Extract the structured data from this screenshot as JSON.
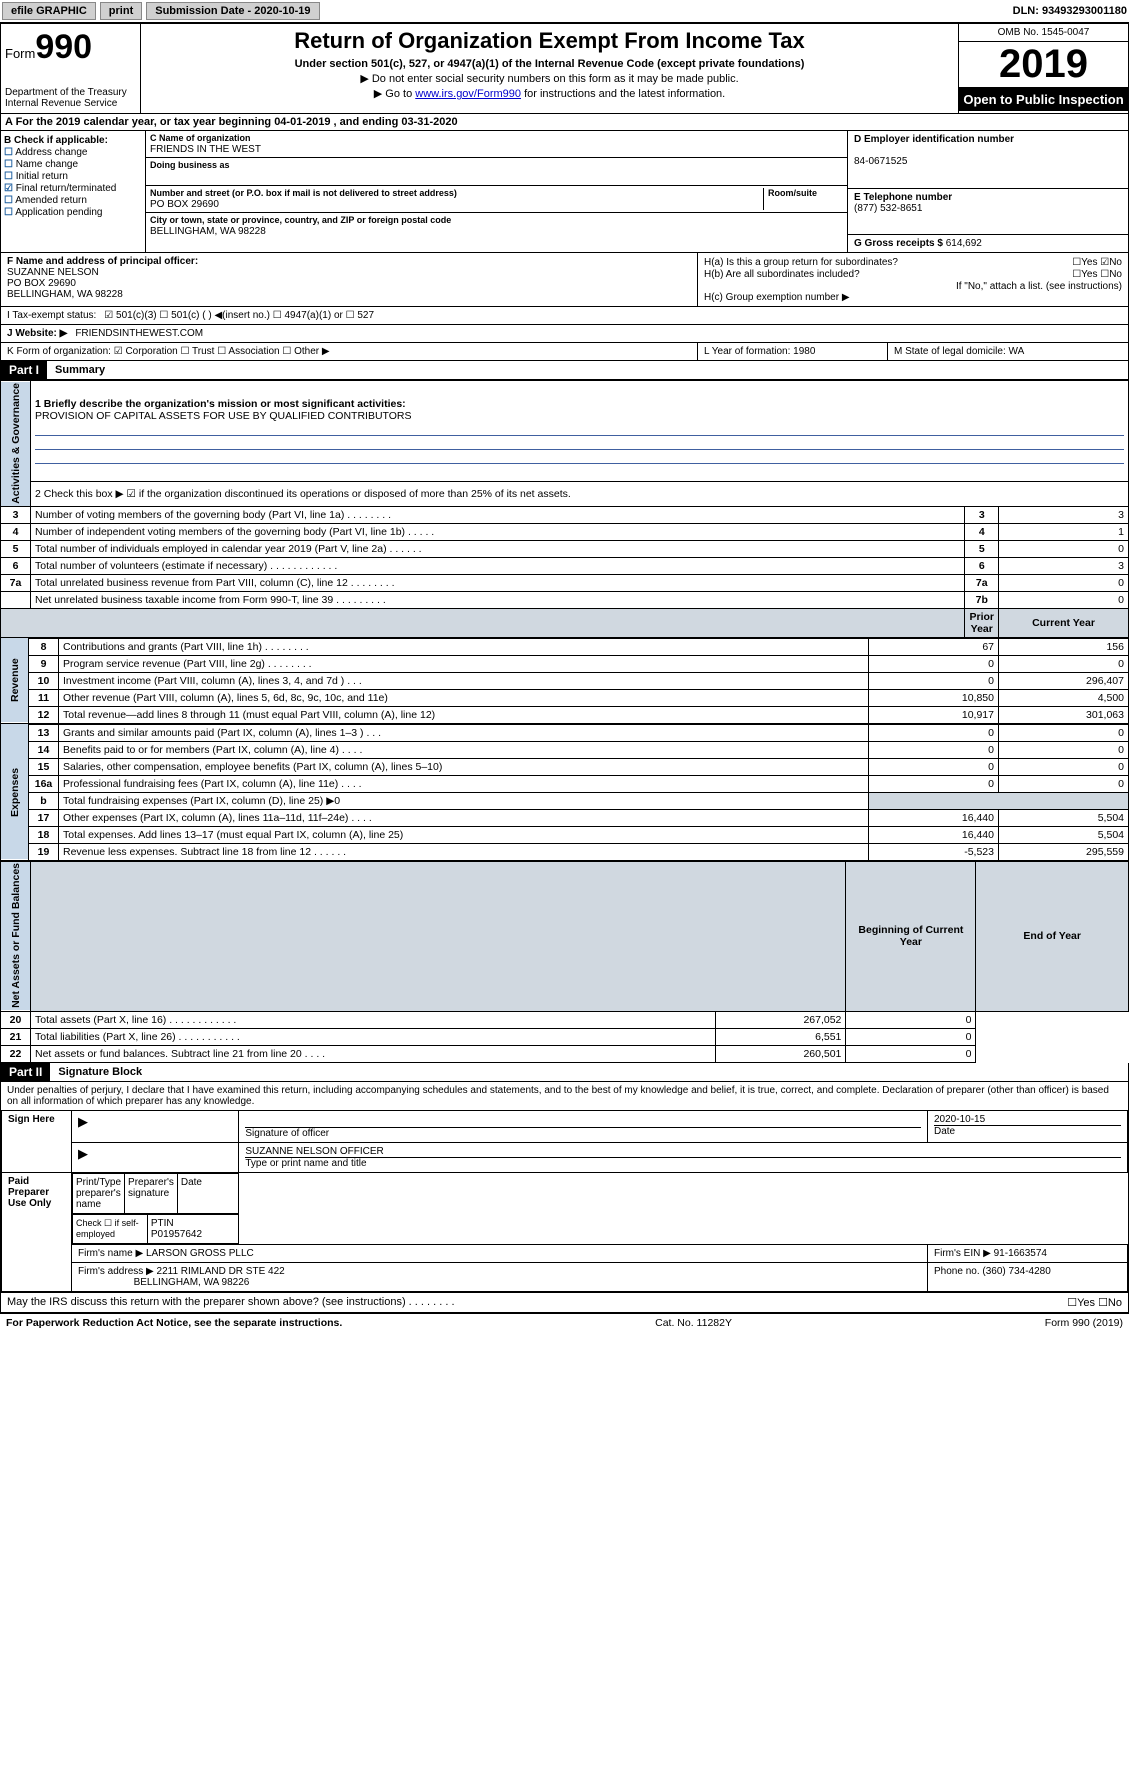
{
  "topbar": {
    "efile": "efile GRAPHIC",
    "print": "print",
    "sub_label": "Submission Date - 2020-10-19",
    "dln": "DLN: 93493293001180"
  },
  "header": {
    "form_prefix": "Form",
    "form_num": "990",
    "dept": "Department of the Treasury\nInternal Revenue Service",
    "title": "Return of Organization Exempt From Income Tax",
    "sub": "Under section 501(c), 527, or 4947(a)(1) of the Internal Revenue Code (except private foundations)",
    "note1": "▶ Do not enter social security numbers on this form as it may be made public.",
    "note2_pre": "▶ Go to ",
    "note2_link": "www.irs.gov/Form990",
    "note2_post": " for instructions and the latest information.",
    "omb": "OMB No. 1545-0047",
    "year": "2019",
    "open": "Open to Public Inspection"
  },
  "row_a": "A For the 2019 calendar year, or tax year beginning 04-01-2019   , and ending 03-31-2020",
  "col_b": {
    "hdr": "B Check if applicable:",
    "items": [
      "Address change",
      "Name change",
      "Initial return",
      "Final return/terminated",
      "Amended return",
      "Application pending"
    ],
    "checked_index": 3
  },
  "col_c": {
    "name_lbl": "C Name of organization",
    "name": "FRIENDS IN THE WEST",
    "dba_lbl": "Doing business as",
    "dba": "",
    "addr_lbl": "Number and street (or P.O. box if mail is not delivered to street address)",
    "addr": "PO BOX 29690",
    "room_lbl": "Room/suite",
    "city_lbl": "City or town, state or province, country, and ZIP or foreign postal code",
    "city": "BELLINGHAM, WA  98228"
  },
  "col_d": {
    "ein_lbl": "D Employer identification number",
    "ein": "84-0671525",
    "tel_lbl": "E Telephone number",
    "tel": "(877) 532-8651",
    "gross_lbl": "G Gross receipts $",
    "gross": "614,692"
  },
  "col_f": {
    "lbl": "F  Name and address of principal officer:",
    "name": "SUZANNE NELSON",
    "addr1": "PO BOX 29690",
    "addr2": "BELLINGHAM, WA  98228"
  },
  "col_h": {
    "ha": "H(a)  Is this a group return for subordinates?",
    "ha_ans": "☐Yes ☑No",
    "hb": "H(b)  Are all subordinates included?",
    "hb_ans": "☐Yes ☐No",
    "hb_note": "If \"No,\" attach a list. (see instructions)",
    "hc": "H(c)  Group exemption number ▶"
  },
  "row_i": {
    "lbl": "I     Tax-exempt status:",
    "opts": "☑ 501(c)(3)   ☐ 501(c) (  ) ◀(insert no.)    ☐ 4947(a)(1) or  ☐ 527"
  },
  "row_j": {
    "lbl": "J    Website: ▶",
    "val": "FRIENDSINTHEWEST.COM"
  },
  "row_k": {
    "left": "K Form of organization:  ☑ Corporation ☐ Trust ☐ Association ☐ Other ▶",
    "mid": "L Year of formation: 1980",
    "right": "M State of legal domicile: WA"
  },
  "part1": {
    "hdr": "Part I",
    "title": "Summary",
    "side_gov": "Activities & Governance",
    "side_rev": "Revenue",
    "side_exp": "Expenses",
    "side_net": "Net Assets or Fund Balances",
    "line1_lbl": "1  Briefly describe the organization's mission or most significant activities:",
    "line1_val": "PROVISION OF CAPITAL ASSETS FOR USE BY QUALIFIED CONTRIBUTORS",
    "line2": "2   Check this box ▶ ☑  if the organization discontinued its operations or disposed of more than 25% of its net assets.",
    "rows_gov": [
      {
        "n": "3",
        "t": "Number of voting members of the governing body (Part VI, line 1a)   .    .    .    .    .    .    .    .",
        "b": "3",
        "v": "3"
      },
      {
        "n": "4",
        "t": "Number of independent voting members of the governing body (Part VI, line 1b)   .    .    .    .    .",
        "b": "4",
        "v": "1"
      },
      {
        "n": "5",
        "t": "Total number of individuals employed in calendar year 2019 (Part V, line 2a)   .    .    .    .    .    .",
        "b": "5",
        "v": "0"
      },
      {
        "n": "6",
        "t": "Total number of volunteers (estimate if necessary)   .    .    .    .    .    .    .    .    .    .    .    .",
        "b": "6",
        "v": "3"
      },
      {
        "n": "7a",
        "t": "Total unrelated business revenue from Part VIII, column (C), line 12   .    .    .    .    .    .    .    .",
        "b": "7a",
        "v": "0"
      },
      {
        "n": "",
        "t": "Net unrelated business taxable income from Form 990-T, line 39   .    .    .    .    .    .    .    .    .",
        "b": "7b",
        "v": "0"
      }
    ],
    "hdr_prior": "Prior Year",
    "hdr_curr": "Current Year",
    "rows_rev": [
      {
        "n": "8",
        "t": "Contributions and grants (Part VIII, line 1h)   .    .    .    .    .    .    .    .",
        "p": "67",
        "c": "156"
      },
      {
        "n": "9",
        "t": "Program service revenue (Part VIII, line 2g)   .    .    .    .    .    .    .    .",
        "p": "0",
        "c": "0"
      },
      {
        "n": "10",
        "t": "Investment income (Part VIII, column (A), lines 3, 4, and 7d )   .    .    .",
        "p": "0",
        "c": "296,407"
      },
      {
        "n": "11",
        "t": "Other revenue (Part VIII, column (A), lines 5, 6d, 8c, 9c, 10c, and 11e)",
        "p": "10,850",
        "c": "4,500"
      },
      {
        "n": "12",
        "t": "Total revenue—add lines 8 through 11 (must equal Part VIII, column (A), line 12)",
        "p": "10,917",
        "c": "301,063"
      }
    ],
    "rows_exp": [
      {
        "n": "13",
        "t": "Grants and similar amounts paid (Part IX, column (A), lines 1–3 )   .    .    .",
        "p": "0",
        "c": "0"
      },
      {
        "n": "14",
        "t": "Benefits paid to or for members (Part IX, column (A), line 4)   .    .    .    .",
        "p": "0",
        "c": "0"
      },
      {
        "n": "15",
        "t": "Salaries, other compensation, employee benefits (Part IX, column (A), lines 5–10)",
        "p": "0",
        "c": "0"
      },
      {
        "n": "16a",
        "t": "Professional fundraising fees (Part IX, column (A), line 11e)   .    .    .    .",
        "p": "0",
        "c": "0"
      },
      {
        "n": "b",
        "t": "Total fundraising expenses (Part IX, column (D), line 25) ▶0",
        "p": "",
        "c": ""
      },
      {
        "n": "17",
        "t": "Other expenses (Part IX, column (A), lines 11a–11d, 11f–24e)   .    .    .    .",
        "p": "16,440",
        "c": "5,504"
      },
      {
        "n": "18",
        "t": "Total expenses. Add lines 13–17 (must equal Part IX, column (A), line 25)",
        "p": "16,440",
        "c": "5,504"
      },
      {
        "n": "19",
        "t": "Revenue less expenses. Subtract line 18 from line 12   .    .    .    .    .    .",
        "p": "-5,523",
        "c": "295,559"
      }
    ],
    "hdr_beg": "Beginning of Current Year",
    "hdr_end": "End of Year",
    "rows_net": [
      {
        "n": "20",
        "t": "Total assets (Part X, line 16)   .    .    .    .    .    .    .    .    .    .    .    .",
        "p": "267,052",
        "c": "0"
      },
      {
        "n": "21",
        "t": "Total liabilities (Part X, line 26)   .    .    .    .    .    .    .    .    .    .    .",
        "p": "6,551",
        "c": "0"
      },
      {
        "n": "22",
        "t": "Net assets or fund balances. Subtract line 21 from line 20   .    .    .    .",
        "p": "260,501",
        "c": "0"
      }
    ]
  },
  "part2": {
    "hdr": "Part II",
    "title": "Signature Block",
    "decl": "Under penalties of perjury, I declare that I have examined this return, including accompanying schedules and statements, and to the best of my knowledge and belief, it is true, correct, and complete. Declaration of preparer (other than officer) is based on all information of which preparer has any knowledge.",
    "sign_here": "Sign Here",
    "sig_lbl": "Signature of officer",
    "date_lbl": "Date",
    "date_val": "2020-10-15",
    "name_val": "SUZANNE NELSON  OFFICER",
    "name_lbl": "Type or print name and title",
    "paid": "Paid Preparer Use Only",
    "prep_name_lbl": "Print/Type preparer's name",
    "prep_sig_lbl": "Preparer's signature",
    "prep_date_lbl": "Date",
    "self_emp": "Check ☐ if self-employed",
    "ptin_lbl": "PTIN",
    "ptin": "P01957642",
    "firm_name_lbl": "Firm's name    ▶",
    "firm_name": "LARSON GROSS PLLC",
    "firm_ein_lbl": "Firm's EIN ▶",
    "firm_ein": "91-1663574",
    "firm_addr_lbl": "Firm's address ▶",
    "firm_addr1": "2211 RIMLAND DR STE 422",
    "firm_addr2": "BELLINGHAM, WA  98226",
    "phone_lbl": "Phone no.",
    "phone": "(360) 734-4280",
    "discuss": "May the IRS discuss this return with the preparer shown above? (see instructions)   .    .    .    .    .    .    .    .",
    "discuss_ans": "☐Yes  ☐No"
  },
  "footer": {
    "left": "For Paperwork Reduction Act Notice, see the separate instructions.",
    "mid": "Cat. No. 11282Y",
    "right": "Form 990 (2019)"
  }
}
